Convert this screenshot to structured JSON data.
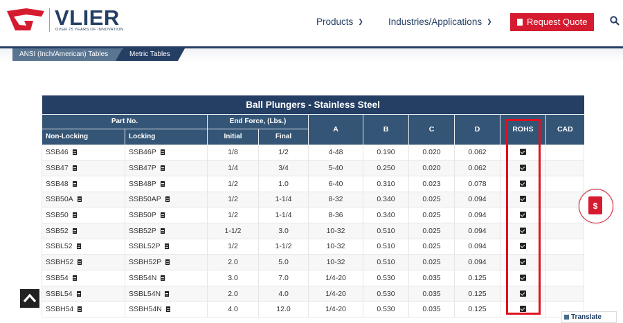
{
  "header": {
    "logo_text": "VLIER",
    "logo_tagline": "OVER 75 YEARS OF INNOVATION",
    "nav": [
      {
        "label": "Products"
      },
      {
        "label": "Industries/Applications"
      }
    ],
    "quote_label": "Request Quote",
    "colors": {
      "navy": "#243e64",
      "red": "#d51b30"
    }
  },
  "subnav": {
    "tabs": [
      {
        "label": "ANSI (Inch/American) Tables"
      },
      {
        "label": "Metric Tables"
      }
    ]
  },
  "table": {
    "title": "Ball Plungers - Stainless Steel",
    "headers": {
      "part_no": "Part No.",
      "end_force": "End Force, (Lbs.)",
      "a": "A",
      "b": "B",
      "c": "C",
      "d": "D",
      "rohs": "ROHS",
      "cad": "CAD",
      "non_locking": "Non-Locking",
      "locking": "Locking",
      "initial": "Initial",
      "final": "Final"
    },
    "rows": [
      {
        "non_locking": "SSB46",
        "locking": "SSB46P",
        "initial": "1/8",
        "final": "1/2",
        "a": "4-48",
        "b": "0.190",
        "c": "0.020",
        "d": "0.062",
        "rohs": true
      },
      {
        "non_locking": "SSB47",
        "locking": "SSB47P",
        "initial": "1/4",
        "final": "3/4",
        "a": "5-40",
        "b": "0.250",
        "c": "0.020",
        "d": "0.062",
        "rohs": true
      },
      {
        "non_locking": "SSB48",
        "locking": "SSB48P",
        "initial": "1/2",
        "final": "1.0",
        "a": "6-40",
        "b": "0.310",
        "c": "0.023",
        "d": "0.078",
        "rohs": true
      },
      {
        "non_locking": "SSB50A",
        "locking": "SSB50AP",
        "initial": "1/2",
        "final": "1-1/4",
        "a": "8-32",
        "b": "0.340",
        "c": "0.025",
        "d": "0.094",
        "rohs": true
      },
      {
        "non_locking": "SSB50",
        "locking": "SSB50P",
        "initial": "1/2",
        "final": "1-1/4",
        "a": "8-36",
        "b": "0.340",
        "c": "0.025",
        "d": "0.094",
        "rohs": true
      },
      {
        "non_locking": "SSB52",
        "locking": "SSB52P",
        "initial": "1-1/2",
        "final": "3.0",
        "a": "10-32",
        "b": "0.510",
        "c": "0.025",
        "d": "0.094",
        "rohs": true
      },
      {
        "non_locking": "SSBL52",
        "locking": "SSBL52P",
        "initial": "1/2",
        "final": "1-1/2",
        "a": "10-32",
        "b": "0.510",
        "c": "0.025",
        "d": "0.094",
        "rohs": true
      },
      {
        "non_locking": "SSBH52",
        "locking": "SSBH52P",
        "initial": "2.0",
        "final": "5.0",
        "a": "10-32",
        "b": "0.510",
        "c": "0.025",
        "d": "0.094",
        "rohs": true
      },
      {
        "non_locking": "SSB54",
        "locking": "SSB54N",
        "initial": "3.0",
        "final": "7.0",
        "a": "1/4-20",
        "b": "0.530",
        "c": "0.035",
        "d": "0.125",
        "rohs": true
      },
      {
        "non_locking": "SSBL54",
        "locking": "SSBL54N",
        "initial": "2.0",
        "final": "4.0",
        "a": "1/4-20",
        "b": "0.530",
        "c": "0.035",
        "d": "0.125",
        "rohs": true
      },
      {
        "non_locking": "SSBH54",
        "locking": "SSBH54N",
        "initial": "4.0",
        "final": "12.0",
        "a": "1/4-20",
        "b": "0.530",
        "c": "0.035",
        "d": "0.125",
        "rohs": true
      }
    ]
  },
  "translate": {
    "label": "Translate"
  }
}
